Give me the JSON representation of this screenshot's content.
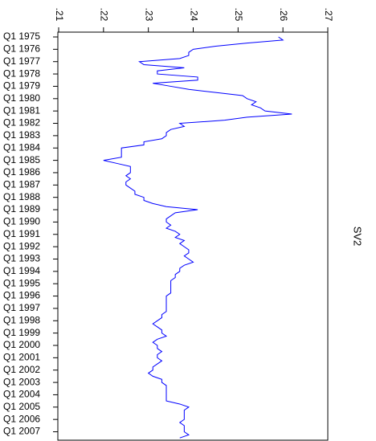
{
  "chart_data": {
    "type": "line",
    "orientation": "horizontal",
    "y_label": "SV2",
    "color": "#0000ff",
    "categories": [
      "Q1 1975",
      null,
      null,
      null,
      "Q1 1976",
      null,
      null,
      null,
      "Q1 1977",
      null,
      null,
      null,
      "Q1 1978",
      null,
      null,
      null,
      "Q1 1979",
      null,
      null,
      null,
      "Q1 1980",
      null,
      null,
      null,
      "Q1 1981",
      null,
      null,
      null,
      "Q1 1982",
      null,
      null,
      null,
      "Q1 1983",
      null,
      null,
      null,
      "Q1 1984",
      null,
      null,
      null,
      "Q1 1985",
      null,
      null,
      null,
      "Q1 1986",
      null,
      null,
      null,
      "Q1 1987",
      null,
      null,
      null,
      "Q1 1988",
      null,
      null,
      null,
      "Q1 1989",
      null,
      null,
      null,
      "Q1 1990",
      null,
      null,
      null,
      "Q1 1991",
      null,
      null,
      null,
      "Q1 1992",
      null,
      null,
      null,
      "Q1 1993",
      null,
      null,
      null,
      "Q1 1994",
      null,
      null,
      null,
      "Q1 1995",
      null,
      null,
      null,
      "Q1 1996",
      null,
      null,
      null,
      "Q1 1997",
      null,
      null,
      null,
      "Q1 1998",
      null,
      null,
      null,
      "Q1 1999",
      null,
      null,
      null,
      "Q1 2000",
      null,
      null,
      null,
      "Q1 2001",
      null,
      null,
      null,
      "Q1 2002",
      null,
      null,
      null,
      "Q1 2003",
      null,
      null,
      null,
      "Q1 2004",
      null,
      null,
      null,
      "Q1 2005",
      null,
      null,
      null,
      "Q1 2006",
      null,
      null,
      null,
      "Q1 2007",
      null,
      null
    ],
    "values": [
      0.259,
      0.26,
      0.252,
      0.245,
      0.24,
      0.239,
      0.239,
      0.237,
      0.228,
      0.229,
      0.238,
      0.232,
      0.232,
      0.241,
      0.241,
      0.231,
      0.235,
      0.239,
      0.245,
      0.251,
      0.252,
      0.254,
      0.253,
      0.255,
      0.256,
      0.262,
      0.252,
      0.247,
      0.237,
      0.238,
      0.235,
      0.234,
      0.234,
      0.233,
      0.229,
      0.229,
      0.224,
      0.224,
      0.224,
      0.224,
      0.22,
      0.223,
      0.226,
      0.226,
      0.226,
      0.225,
      0.226,
      0.225,
      0.225,
      0.226,
      0.227,
      0.227,
      0.229,
      0.229,
      0.231,
      0.234,
      0.241,
      0.236,
      0.235,
      0.234,
      0.234,
      0.235,
      0.234,
      0.236,
      0.237,
      0.236,
      0.238,
      0.237,
      0.238,
      0.239,
      0.239,
      0.238,
      0.239,
      0.24,
      0.238,
      0.237,
      0.237,
      0.236,
      0.236,
      0.235,
      0.235,
      0.235,
      0.235,
      0.235,
      0.234,
      0.234,
      0.234,
      0.234,
      0.234,
      0.234,
      0.233,
      0.233,
      0.232,
      0.231,
      0.232,
      0.233,
      0.233,
      0.234,
      0.232,
      0.231,
      0.232,
      0.232,
      0.233,
      0.232,
      0.232,
      0.233,
      0.232,
      0.231,
      0.231,
      0.23,
      0.231,
      0.233,
      0.233,
      0.234,
      0.234,
      0.234,
      0.234,
      0.234,
      0.234,
      0.237,
      0.239,
      0.238,
      0.238,
      0.238,
      0.238,
      0.237,
      0.238,
      0.238,
      0.238,
      0.239,
      0.237
    ],
    "xlim": [
      0.21,
      0.27
    ],
    "xticks": [
      {
        "value": 0.21,
        "label": ".21"
      },
      {
        "value": 0.22,
        "label": ".22"
      },
      {
        "value": 0.23,
        "label": ".23"
      },
      {
        "value": 0.24,
        "label": ".24"
      },
      {
        "value": 0.25,
        "label": ".25"
      },
      {
        "value": 0.26,
        "label": ".26"
      },
      {
        "value": 0.27,
        "label": ".27"
      }
    ]
  }
}
